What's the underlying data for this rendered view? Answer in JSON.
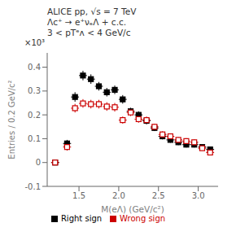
{
  "chart_data": {
    "type": "scatter",
    "xlabel": "M(eΛ) (GeV/c²)",
    "ylabel": "Entries / 0.2 GeV/c²",
    "annotations": [
      "ALICE  pp, √s = 7 TeV",
      "Λc⁺ → e⁺νₑΛ + c.c.",
      "3 < pTᵉᴧ < 4 GeV/c",
      "×10³"
    ],
    "series": [
      {
        "name": "Right sign",
        "color": "#000000",
        "marker": "square",
        "x": [
          1.2,
          1.35,
          1.45,
          1.55,
          1.65,
          1.75,
          1.85,
          1.95,
          2.05,
          2.15,
          2.25,
          2.35,
          2.45,
          2.55,
          2.65,
          2.75,
          2.85,
          2.95,
          3.05,
          3.15
        ],
        "values": [
          0.0,
          0.08,
          0.275,
          0.365,
          0.35,
          0.32,
          0.295,
          0.305,
          0.265,
          0.215,
          0.2,
          0.175,
          0.145,
          0.11,
          0.095,
          0.085,
          0.075,
          0.075,
          0.065,
          0.055
        ],
        "yerr": [
          0.003,
          0.015,
          0.02,
          0.02,
          0.02,
          0.018,
          0.018,
          0.018,
          0.018,
          0.015,
          0.015,
          0.015,
          0.013,
          0.013,
          0.012,
          0.012,
          0.012,
          0.012,
          0.01,
          0.01
        ],
        "xerr": [
          0.05,
          0.05,
          0.05,
          0.05,
          0.05,
          0.05,
          0.05,
          0.05,
          0.05,
          0.05,
          0.05,
          0.05,
          0.05,
          0.05,
          0.05,
          0.05,
          0.05,
          0.05,
          0.05,
          0.05
        ]
      },
      {
        "name": "Wrong sign",
        "color": "#cc0000",
        "marker": "square_open",
        "x": [
          1.2,
          1.35,
          1.45,
          1.55,
          1.65,
          1.75,
          1.85,
          1.95,
          2.05,
          2.15,
          2.25,
          2.35,
          2.45,
          2.55,
          2.65,
          2.75,
          2.85,
          2.95,
          3.05,
          3.15
        ],
        "values": [
          0.0,
          0.065,
          0.228,
          0.248,
          0.245,
          0.245,
          0.235,
          0.232,
          0.178,
          0.21,
          0.182,
          0.178,
          0.15,
          0.118,
          0.11,
          0.095,
          0.09,
          0.085,
          0.06,
          0.042
        ],
        "yerr": [
          0.003,
          0.015,
          0.018,
          0.018,
          0.018,
          0.018,
          0.018,
          0.018,
          0.015,
          0.015,
          0.015,
          0.015,
          0.013,
          0.013,
          0.012,
          0.012,
          0.012,
          0.012,
          0.01,
          0.01
        ],
        "xerr": [
          0.05,
          0.05,
          0.05,
          0.05,
          0.05,
          0.05,
          0.05,
          0.05,
          0.05,
          0.05,
          0.05,
          0.05,
          0.05,
          0.05,
          0.05,
          0.05,
          0.05,
          0.05,
          0.05,
          0.05
        ]
      }
    ],
    "xlim": [
      1.1,
      3.25
    ],
    "xticks": [
      1.5,
      {
        "value": 2.0,
        "label": "2.0"
      },
      2.5,
      {
        "value": 3.0,
        "label": "3.0"
      }
    ],
    "ylim": [
      -0.1,
      0.46
    ],
    "yticks": [
      -0.1,
      0,
      0.1,
      0.2,
      0.3,
      0.4
    ],
    "grid": false,
    "legend": "bottom"
  }
}
